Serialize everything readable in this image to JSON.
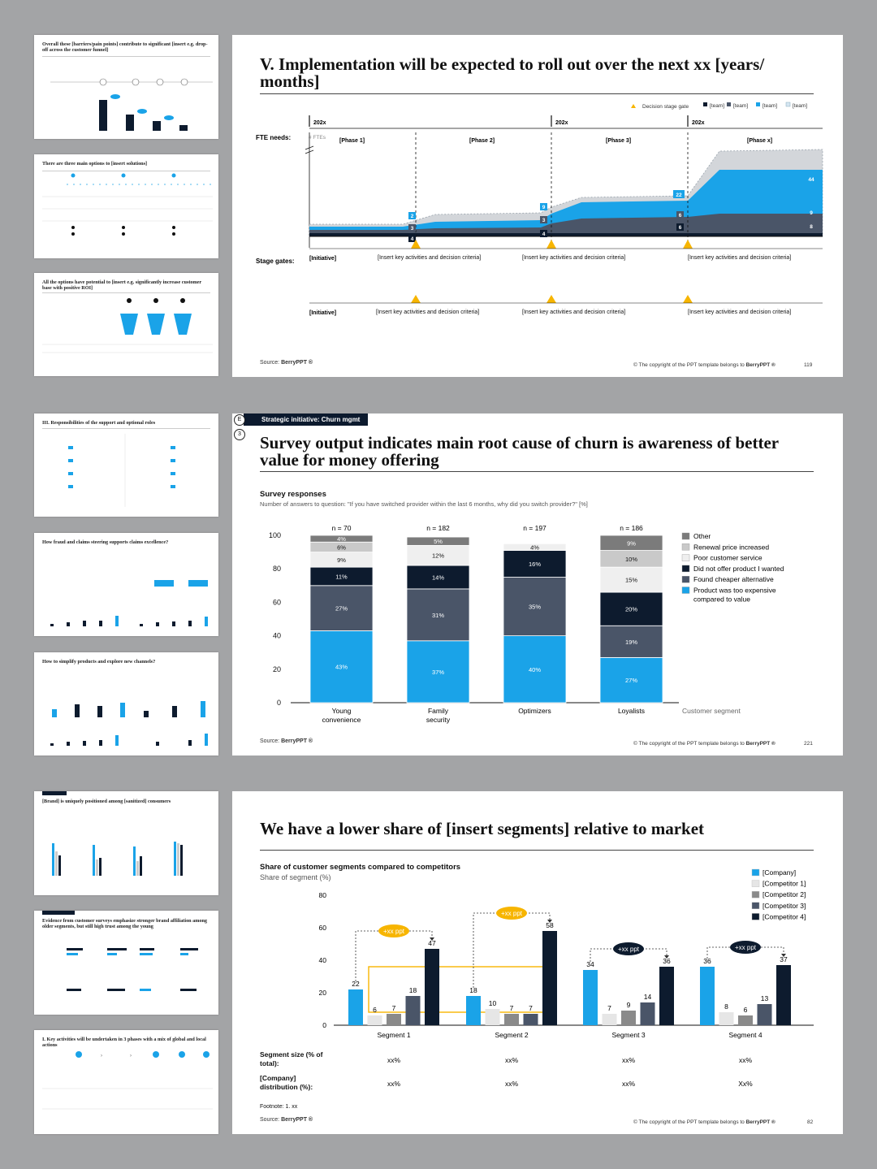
{
  "thumbs": [
    {
      "title": "Overall these [barriers/pain points] contribute to significant [insert e.g. drop-off across the customer funnel]",
      "blue": false
    },
    {
      "title": "There are three main options to [insert solutions]",
      "blue": false
    },
    {
      "title": "All the options have potential to [insert e.g. significantly increase customer base with positive ROI]",
      "blue": false
    },
    {
      "title": "III. Responsibilities of the support and optional roles",
      "blue": false
    },
    {
      "title": "How fraud and claims steering supports claims excellence?",
      "blue": true
    },
    {
      "title": "How to simplify products and explore new channels?",
      "blue": true
    },
    {
      "title": "[Brand] is uniquely positioned among [sanitized] consumers",
      "blue": false
    },
    {
      "title": "Evidence from customer surveys emphasize stronger brand affiliation among older segments, but still high trust among the young",
      "blue": false
    },
    {
      "title": "I. Key activities will be undertaken in 3 phases with a mix of global and local actions",
      "blue": false
    }
  ],
  "slide1": {
    "title": "V. Implementation will be expected to roll out over the next xx [years/ months]",
    "legend": {
      "gate": "Decision stage gate",
      "teams": [
        "[team]",
        "[team]",
        "[team]",
        "[team]"
      ]
    },
    "years": [
      "202x",
      "202x",
      "202x"
    ],
    "fte_label": "FTE needs:",
    "fte_unit": "# FTEs",
    "phases": [
      "[Phase 1]",
      "[Phase 2]",
      "[Phase 3]",
      "[Phase x]"
    ],
    "value_labels": [
      "2",
      "3",
      "4",
      "9",
      "3",
      "4",
      "22",
      "6",
      "6",
      "44",
      "9",
      "8"
    ],
    "stage_label": "Stage gates:",
    "stage_row1": [
      "[Initiative]",
      "[Insert key activities and decision criteria]",
      "[Insert key activities and decision criteria]",
      "[Insert key activities and decision criteria]"
    ],
    "stage_row2": [
      "[Initiative]",
      "[Insert key activities and decision criteria]",
      "[Insert key activities and decision criteria]",
      "[Insert key activities and decision criteria]"
    ],
    "source_label": "Source:",
    "source": "BerryPPT ®",
    "copyright_prefix": "© The copyright of the PPT template belongs to ",
    "copyright_brand": "BerryPPT ®",
    "page": "119"
  },
  "slide2": {
    "tag": "Strategic initiative: Churn mgmt",
    "tag_letter": "E",
    "step": "3",
    "title": "Survey output indicates main root cause of churn is awareness of better value for money offering",
    "chart_title": "Survey responses",
    "chart_subtitle": "Number of answers to question: \"If you have switched provider within the last 6 months, why did you switch provider?\" [%]",
    "x_axis_label": "Customer segment",
    "source_label": "Source:",
    "source": "BerryPPT ®",
    "copyright_prefix": "© The copyright of the PPT template belongs to ",
    "copyright_brand": "BerryPPT ®",
    "page": "221"
  },
  "slide3": {
    "title": "We have a lower share of [insert segments] relative to market",
    "chart_title": "Share of customer segments compared to competitors",
    "chart_subtitle": "Share of segment (%)",
    "callouts": [
      "+xx ppt",
      "+xx ppt",
      "+xx ppt",
      "+xx ppt"
    ],
    "seg_size_label": "Segment size (% of total):",
    "company_dist_label": "[Company] distribution (%):",
    "seg_size_values": [
      "xx%",
      "xx%",
      "xx%",
      "xx%"
    ],
    "company_dist_values": [
      "xx%",
      "xx%",
      "xx%",
      "Xx%"
    ],
    "footnote": "Footnote: 1. xx",
    "source_label": "Source:",
    "source": "BerryPPT ®",
    "copyright_prefix": "© The copyright of the PPT template belongs to ",
    "copyright_brand": "BerryPPT ®",
    "page": "82"
  },
  "chart_data": [
    {
      "type": "area",
      "title": "",
      "xlabel": "",
      "ylabel": "# FTEs",
      "legend_placement": "top-right"
    },
    {
      "type": "bar",
      "stacked": true,
      "title": "Survey responses",
      "xlabel": "Customer segment",
      "ylabel": "",
      "ylim": [
        0,
        100
      ],
      "yticks": [
        0,
        20,
        40,
        60,
        80,
        100
      ],
      "categories": [
        "Young convenience",
        "Family security",
        "Optimizers",
        "Loyalists"
      ],
      "n_labels": [
        "n = 70",
        "n = 182",
        "n = 197",
        "n = 186"
      ],
      "legend_placement": "right",
      "series": [
        {
          "name": "Product was too expensive compared to value",
          "color": "#1aa3e8",
          "values": [
            43,
            37,
            40,
            27
          ]
        },
        {
          "name": "Found cheaper alternative",
          "color": "#4a5568",
          "values": [
            27,
            31,
            35,
            19
          ]
        },
        {
          "name": "Did not offer product I wanted",
          "color": "#0d1b2e",
          "values": [
            11,
            14,
            16,
            20
          ]
        },
        {
          "name": "Poor customer service",
          "color": "#efefef",
          "values": [
            9,
            12,
            4,
            15
          ]
        },
        {
          "name": "Renewal price increased",
          "color": "#c9c9c9",
          "values": [
            6,
            0,
            0,
            10
          ]
        },
        {
          "name": "Other",
          "color": "#7b7b7b",
          "values": [
            4,
            5,
            0,
            9
          ]
        }
      ]
    },
    {
      "type": "bar",
      "title": "Share of customer segments compared to competitors",
      "xlabel": "",
      "ylabel": "Share of segment (%)",
      "ylim": [
        0,
        80
      ],
      "yticks": [
        0,
        20,
        40,
        60,
        80
      ],
      "categories": [
        "Segment 1",
        "Segment 2",
        "Segment 3",
        "Segment 4"
      ],
      "legend_placement": "top-right",
      "series": [
        {
          "name": "[Company]",
          "color": "#1aa3e8",
          "values": [
            22,
            18,
            34,
            36
          ]
        },
        {
          "name": "[Competitor 1]",
          "color": "#e6e6e6",
          "values": [
            6,
            10,
            7,
            8
          ]
        },
        {
          "name": "[Competitor 2]",
          "color": "#8a8a8a",
          "values": [
            7,
            7,
            9,
            6
          ]
        },
        {
          "name": "[Competitor 3]",
          "color": "#4a5568",
          "values": [
            18,
            7,
            14,
            13
          ]
        },
        {
          "name": "[Competitor 4]",
          "color": "#0d1b2e",
          "values": [
            47,
            58,
            36,
            37
          ]
        }
      ]
    }
  ]
}
